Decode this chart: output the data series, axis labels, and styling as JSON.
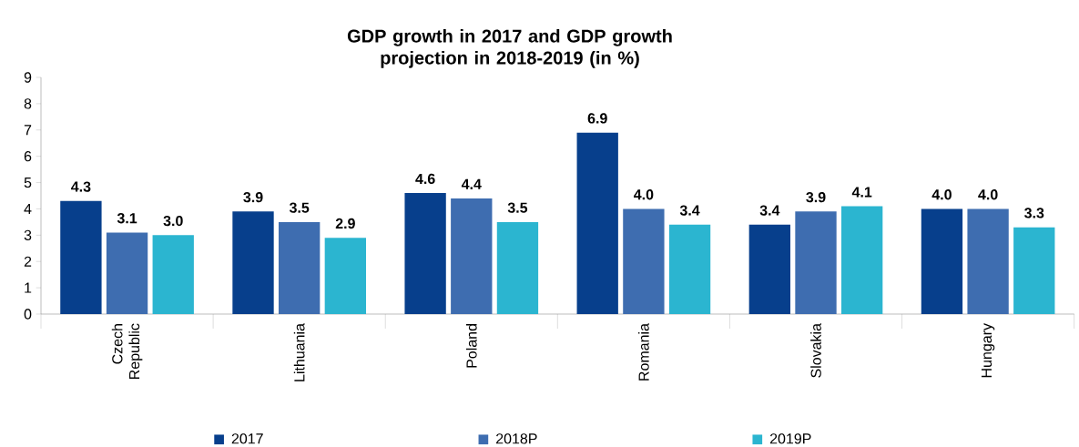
{
  "chart_data": {
    "type": "bar",
    "title": "GDP growth in 2017 and GDP growth projection in 2018-2019 (in %)",
    "categories": [
      "Czech Republic",
      "Lithuania",
      "Poland",
      "Romania",
      "Slovakia",
      "Hungary"
    ],
    "series": [
      {
        "name": "2017",
        "color": "#073f8c",
        "values": [
          4.3,
          3.9,
          4.6,
          6.9,
          3.4,
          4.0
        ],
        "value_labels": [
          "4.3",
          "3.9",
          "4.6",
          "6.9",
          "3.4",
          "4.0"
        ]
      },
      {
        "name": "2018P",
        "color": "#3e6db0",
        "values": [
          3.1,
          3.5,
          4.4,
          4.0,
          3.9,
          4.0
        ],
        "value_labels": [
          "3.1",
          "3.5",
          "4.4",
          "4.0",
          "3.9",
          "4.0"
        ]
      },
      {
        "name": "2019P",
        "color": "#2bb5d0",
        "values": [
          3.0,
          2.9,
          3.5,
          3.4,
          4.1,
          3.3
        ],
        "value_labels": [
          "3.0",
          "2.9",
          "3.5",
          "3.4",
          "4.1",
          "3.3"
        ]
      }
    ],
    "ylim": [
      0,
      9
    ],
    "yticks": [
      0,
      1,
      2,
      3,
      4,
      5,
      6,
      7,
      8,
      9
    ],
    "legend": "bottom",
    "grid": false
  }
}
